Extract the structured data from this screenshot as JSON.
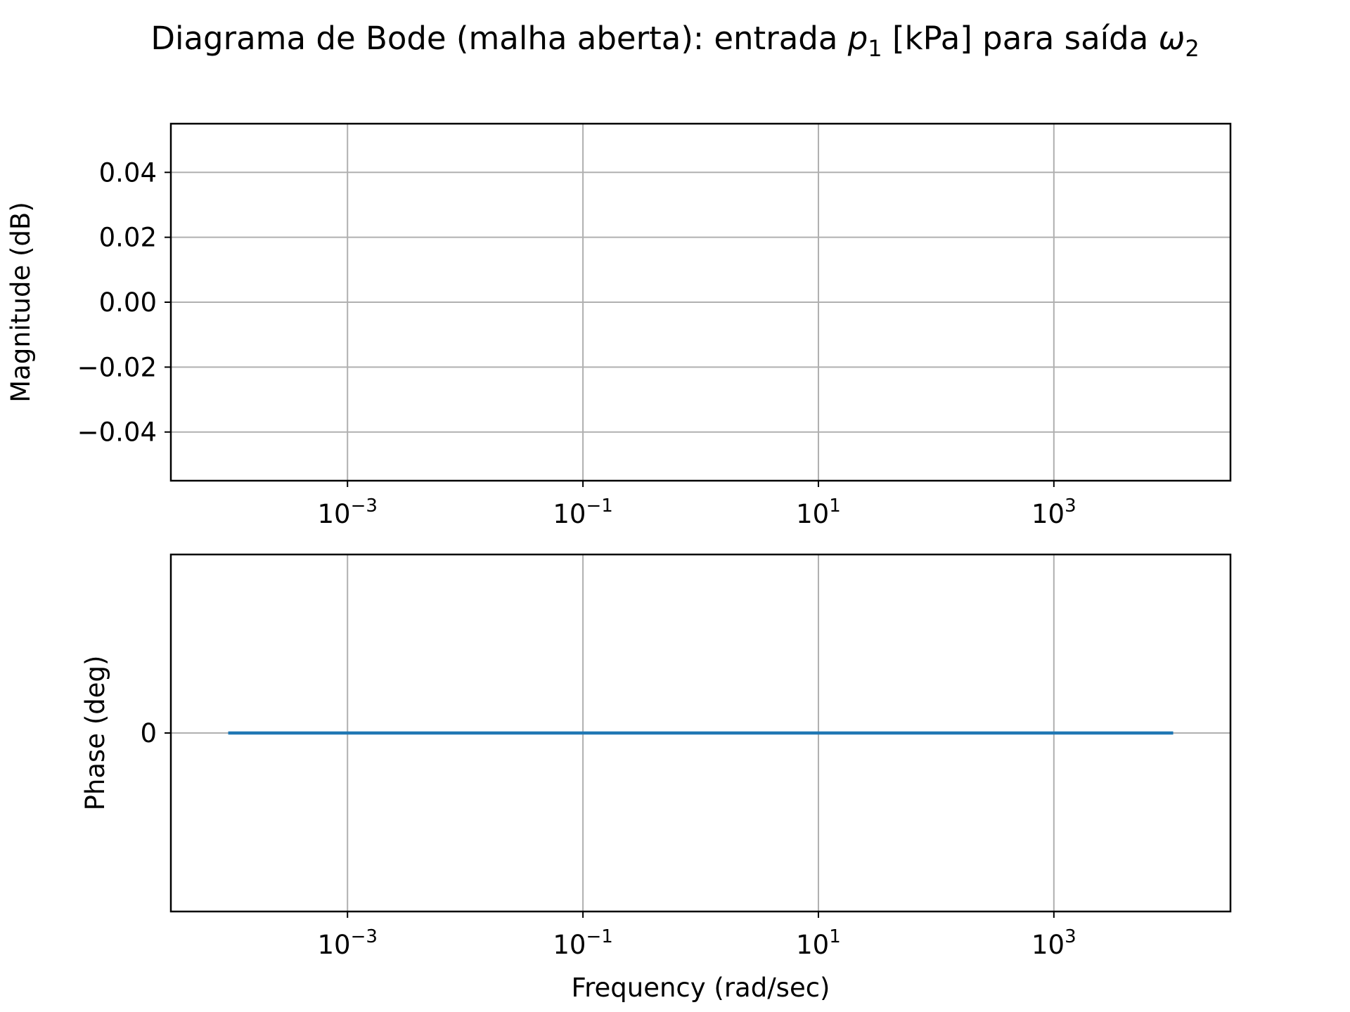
{
  "title": {
    "prefix": "Diagrama de Bode (malha aberta): entrada ",
    "input_symbol": "p",
    "input_index": "1",
    "middle": " [kPa] para saída ",
    "output_symbol": "ω",
    "output_index": "2"
  },
  "colors": {
    "series": "#1f77b4",
    "grid": "#b0b0b0",
    "axes": "#000000"
  },
  "chart_data": [
    {
      "type": "line",
      "panel": "magnitude",
      "xlabel": "",
      "ylabel": "Magnitude (dB)",
      "xscale": "log",
      "xlim": [
        3.16e-05,
        31623
      ],
      "ylim": [
        -0.055,
        0.055
      ],
      "yticks": [
        {
          "value": 0.04,
          "label": "0.04"
        },
        {
          "value": 0.02,
          "label": "0.02"
        },
        {
          "value": 0.0,
          "label": "0.00"
        },
        {
          "value": -0.02,
          "label": "−0.02"
        },
        {
          "value": -0.04,
          "label": "−0.04"
        }
      ],
      "xticks": [
        {
          "value": 0.001,
          "base": "10",
          "exp": "−3"
        },
        {
          "value": 0.1,
          "base": "10",
          "exp": "−1"
        },
        {
          "value": 10,
          "base": "10",
          "exp": "1"
        },
        {
          "value": 1000,
          "base": "10",
          "exp": "3"
        }
      ],
      "grid": true,
      "series": [
        {
          "x": [],
          "y": []
        }
      ]
    },
    {
      "type": "line",
      "panel": "phase",
      "xlabel": "Frequency (rad/sec)",
      "ylabel": "Phase (deg)",
      "xscale": "log",
      "xlim": [
        3.16e-05,
        31623
      ],
      "ylim": [
        -1,
        1
      ],
      "yticks": [
        {
          "value": 0,
          "label": "0"
        }
      ],
      "xticks": [
        {
          "value": 0.001,
          "base": "10",
          "exp": "−3"
        },
        {
          "value": 0.1,
          "base": "10",
          "exp": "−1"
        },
        {
          "value": 10,
          "base": "10",
          "exp": "1"
        },
        {
          "value": 1000,
          "base": "10",
          "exp": "3"
        }
      ],
      "grid": true,
      "series": [
        {
          "x": [
            0.0001,
            0.001,
            0.01,
            0.1,
            1,
            10,
            100,
            1000,
            10000
          ],
          "y": [
            0,
            0,
            0,
            0,
            0,
            0,
            0,
            0,
            0
          ]
        }
      ]
    }
  ]
}
